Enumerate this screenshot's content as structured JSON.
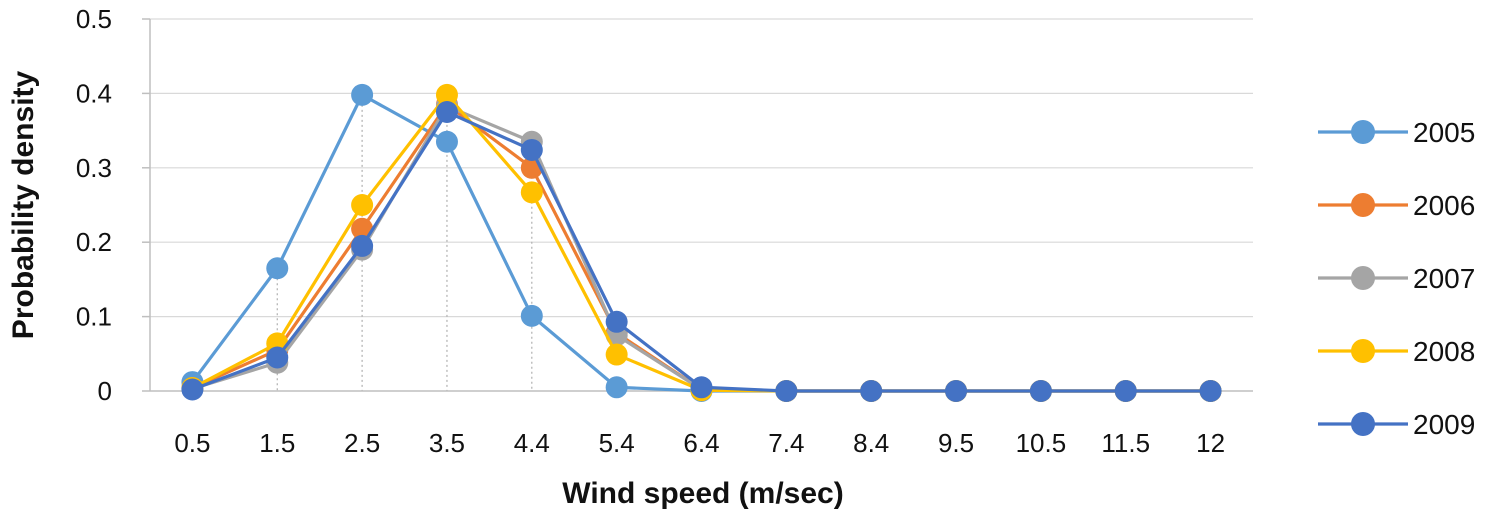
{
  "chart_data": {
    "type": "line",
    "title": "",
    "xlabel": "Wind speed (m/sec)",
    "ylabel": "Probability density",
    "categories": [
      "0.5",
      "1.5",
      "2.5",
      "3.5",
      "4.4",
      "5.4",
      "6.4",
      "7.4",
      "8.4",
      "9.5",
      "10.5",
      "11.5",
      "12"
    ],
    "ylim": [
      0,
      0.5
    ],
    "yticks": [
      "0",
      "0.1",
      "0.2",
      "0.3",
      "0.4",
      "0.5"
    ],
    "grid": true,
    "legend_position": "right",
    "series": [
      {
        "name": "2005",
        "color": "#5b9bd5",
        "values": [
          0.012,
          0.165,
          0.398,
          0.335,
          0.101,
          0.005,
          0.0,
          0.0,
          0.0,
          0.0,
          0.0,
          0.0,
          0.0
        ]
      },
      {
        "name": "2006",
        "color": "#ed7d31",
        "values": [
          0.004,
          0.055,
          0.218,
          0.385,
          0.3,
          0.078,
          0.002,
          0.0,
          0.0,
          0.0,
          0.0,
          0.0,
          0.0
        ]
      },
      {
        "name": "2007",
        "color": "#a5a5a5",
        "values": [
          0.003,
          0.038,
          0.19,
          0.383,
          0.335,
          0.075,
          0.002,
          0.0,
          0.0,
          0.0,
          0.0,
          0.0,
          0.0
        ]
      },
      {
        "name": "2008",
        "color": "#ffc000",
        "values": [
          0.004,
          0.064,
          0.25,
          0.398,
          0.267,
          0.049,
          0.001,
          0.0,
          0.0,
          0.0,
          0.0,
          0.0,
          0.0
        ]
      },
      {
        "name": "2009",
        "color": "#4472c4",
        "values": [
          0.002,
          0.045,
          0.195,
          0.375,
          0.324,
          0.093,
          0.005,
          0.0,
          0.0,
          0.0,
          0.0,
          0.0,
          0.0
        ]
      }
    ]
  }
}
